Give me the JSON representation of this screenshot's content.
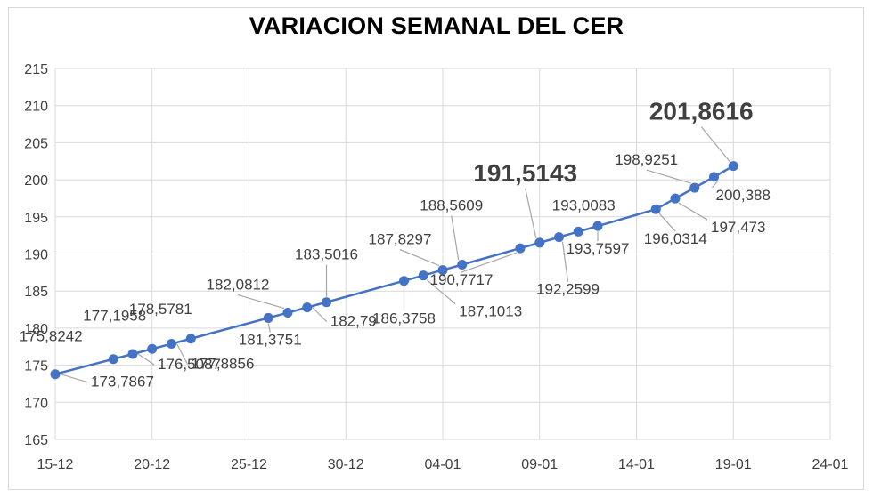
{
  "chart_data": {
    "type": "line",
    "title": "VARIACION SEMANAL DEL CER",
    "xlabel": "",
    "ylabel": "",
    "ylim": [
      165,
      215
    ],
    "yticks": [
      165,
      170,
      175,
      180,
      185,
      190,
      195,
      200,
      205,
      210,
      215
    ],
    "xticks": [
      "15-12",
      "20-12",
      "25-12",
      "30-12",
      "04-01",
      "09-01",
      "14-01",
      "19-01",
      "24-01"
    ],
    "xlim_days": [
      0,
      40
    ],
    "grid": true,
    "legend": "none",
    "color": "#4472C4",
    "series": [
      {
        "points": [
          {
            "x": "15-12",
            "y": 173.7867,
            "label": "173,7867"
          },
          {
            "x": "18-12",
            "y": 175.8242,
            "label": "175,8242"
          },
          {
            "x": "19-12",
            "y": 176.5087,
            "label": "176,5087"
          },
          {
            "x": "20-12",
            "y": 177.1958,
            "label": "177,1958"
          },
          {
            "x": "21-12",
            "y": 177.8856,
            "label": "177,8856"
          },
          {
            "x": "22-12",
            "y": 178.5781,
            "label": "178,5781"
          },
          {
            "x": "26-12",
            "y": 181.3751,
            "label": "181,3751"
          },
          {
            "x": "27-12",
            "y": 182.0812,
            "label": "182,0812"
          },
          {
            "x": "28-12",
            "y": 182.79,
            "label": "182,79"
          },
          {
            "x": "29-12",
            "y": 183.5016,
            "label": "183,5016"
          },
          {
            "x": "02-01",
            "y": 186.3758,
            "label": "186,3758"
          },
          {
            "x": "03-01",
            "y": 187.1013,
            "label": "187,1013"
          },
          {
            "x": "04-01",
            "y": 187.8297,
            "label": "187,8297"
          },
          {
            "x": "05-01",
            "y": 188.5609,
            "label": "188,5609"
          },
          {
            "x": "08-01",
            "y": 190.7717,
            "label": "190,7717"
          },
          {
            "x": "09-01",
            "y": 191.5143,
            "label": "191,5143",
            "highlight": true
          },
          {
            "x": "10-01",
            "y": 192.2599,
            "label": "192,2599"
          },
          {
            "x": "11-01",
            "y": 193.0083,
            "label": "193,0083"
          },
          {
            "x": "12-01",
            "y": 193.7597,
            "label": "193,7597"
          },
          {
            "x": "15-01",
            "y": 196.0314,
            "label": "196,0314"
          },
          {
            "x": "16-01",
            "y": 197.473,
            "label": "197,473"
          },
          {
            "x": "17-01",
            "y": 198.9251,
            "label": "198,9251"
          },
          {
            "x": "18-01",
            "y": 200.388,
            "label": "200,388"
          },
          {
            "x": "19-01",
            "y": 201.8616,
            "label": "201,8616",
            "highlight": true
          }
        ]
      }
    ]
  }
}
